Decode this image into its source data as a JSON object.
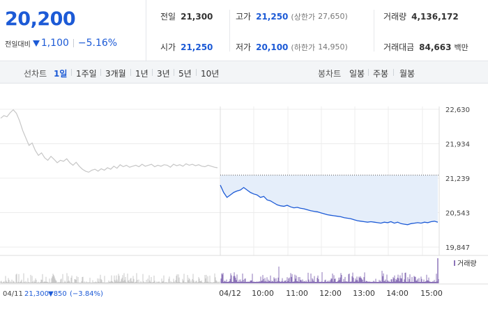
{
  "summary": {
    "price": "20,200",
    "change_label": "전일대비",
    "change": "1,100",
    "change_pct": "−5.16%"
  },
  "stats": {
    "prev_close": {
      "label": "전일",
      "value": "21,300"
    },
    "high": {
      "label": "고가",
      "value": "21,250",
      "limit_label": "(상한가",
      "limit_value": "27,650)"
    },
    "volume": {
      "label": "거래량",
      "value": "4,136,172"
    },
    "open": {
      "label": "시가",
      "value": "21,250"
    },
    "low": {
      "label": "저가",
      "value": "20,100",
      "limit_label": "(하한가",
      "limit_value": "14,950)"
    },
    "amount": {
      "label": "거래대금",
      "value": "84,663",
      "unit": "백만"
    }
  },
  "toolbar": {
    "line_label": "선차트",
    "line_periods": [
      "1일",
      "1주일",
      "3개월",
      "1년",
      "3년",
      "5년",
      "10년"
    ],
    "active_period": "1일",
    "candle_label": "봉차트",
    "candle_periods": [
      "일봉",
      "주봉",
      "월봉"
    ]
  },
  "chart_data": {
    "type": "line",
    "y_ticks": [
      "22,630",
      "21,934",
      "21,239",
      "20,543",
      "19,847"
    ],
    "ylim": [
      19847,
      22630
    ],
    "x_ticks": [
      "04/11",
      "04/12",
      "10:00",
      "11:00",
      "12:00",
      "13:00",
      "14:00",
      "15:00"
    ],
    "prev_day_close_line": 21300,
    "prev_day_legend": {
      "date": "04/11",
      "close": "21,300",
      "change": "▼850",
      "change_pct": "(−3.84%)"
    },
    "volume_legend": "거래량",
    "series": [
      {
        "day": "04/11",
        "values": [
          22450,
          22500,
          22480,
          22560,
          22620,
          22550,
          22400,
          22200,
          22050,
          21900,
          21950,
          21800,
          21700,
          21750,
          21650,
          21600,
          21680,
          21620,
          21550,
          21600,
          21580,
          21630,
          21550,
          21500,
          21560,
          21480,
          21420,
          21380,
          21360,
          21400,
          21420,
          21380,
          21430,
          21400,
          21450,
          21420,
          21480,
          21440,
          21510,
          21470,
          21500,
          21460,
          21480,
          21500,
          21470,
          21520,
          21480,
          21500,
          21520,
          21470,
          21500,
          21480,
          21510,
          21500,
          21460,
          21520,
          21490,
          21510,
          21480,
          21530,
          21500,
          21520,
          21490,
          21510,
          21480,
          21470,
          21500,
          21480,
          21460,
          21450
        ]
      },
      {
        "day": "04/12",
        "values": [
          21100,
          20950,
          20850,
          20900,
          20950,
          20980,
          21000,
          21050,
          21000,
          20950,
          20920,
          20900,
          20850,
          20870,
          20800,
          20780,
          20740,
          20700,
          20680,
          20670,
          20690,
          20660,
          20640,
          20650,
          20630,
          20620,
          20600,
          20580,
          20570,
          20560,
          20540,
          20520,
          20500,
          20490,
          20480,
          20470,
          20460,
          20440,
          20430,
          20420,
          20400,
          20380,
          20370,
          20360,
          20350,
          20360,
          20350,
          20340,
          20330,
          20350,
          20340,
          20360,
          20330,
          20350,
          20320,
          20310,
          20300,
          20320,
          20330,
          20340,
          20330,
          20350,
          20340,
          20360,
          20370,
          20350
        ]
      }
    ]
  },
  "colors": {
    "blue": "#1c5ad6",
    "grey_line": "#c6c6c6",
    "area_fill": "#e5eefa",
    "volume_grey": "#c8c8c8",
    "volume_purple": "#8c74b8"
  }
}
